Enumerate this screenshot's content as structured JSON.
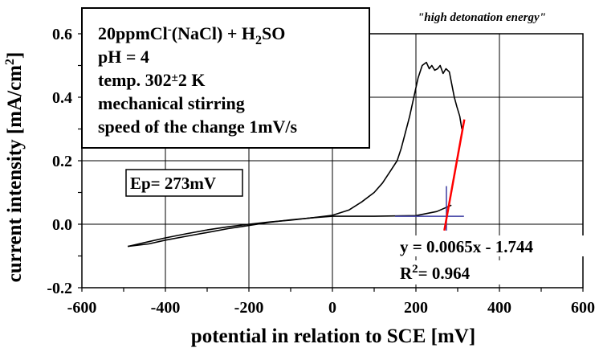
{
  "chart_data": {
    "type": "line",
    "xlabel": "potential in relation to SCE [mV]",
    "ylabel": "current intensity [mA/cm²]",
    "xlim": [
      -600,
      600
    ],
    "ylim": [
      -0.2,
      0.6
    ],
    "x_ticks": [
      "-600",
      "-400",
      "-200",
      "0",
      "200",
      "400",
      "600"
    ],
    "y_ticks": [
      "-0.2",
      "0.0",
      "0.2",
      "0.4",
      "0.6"
    ],
    "grid": true,
    "title": "",
    "top_label": "\"high detonation energy\"",
    "conditions": {
      "line1": "20ppmCl",
      "line1_sup": "-",
      "line1_after": "(NaCl) + H",
      "line1_sub": "2",
      "line1_end": "SO",
      "line2": "pH = 4",
      "line3_pre": "temp. 302",
      "line3_pm": "±",
      "line3_post": "2 K",
      "line4": "mechanical stirring",
      "line5": "speed of the change 1mV/s"
    },
    "ep_label": "Ep= 273mV",
    "fit_equation": "y = 0.0065x - 1.744",
    "r2_pre": "R",
    "r2_sup": "2",
    "r2_post": "= 0.964",
    "colors": {
      "curve": "#000000",
      "fit_line": "#ff0000",
      "marker": "#3a3aa0",
      "grid": "#000000"
    },
    "series": [
      {
        "values": [
          [
            -490,
            -0.07
          ],
          [
            -440,
            -0.055
          ],
          [
            -400,
            -0.043
          ],
          [
            -350,
            -0.03
          ],
          [
            -300,
            -0.018
          ],
          [
            -250,
            -0.008
          ],
          [
            -200,
            0.0
          ],
          [
            -150,
            0.007
          ],
          [
            -100,
            0.013
          ],
          [
            -50,
            0.02
          ],
          [
            0,
            0.028
          ],
          [
            40,
            0.045
          ],
          [
            70,
            0.07
          ],
          [
            100,
            0.1
          ],
          [
            120,
            0.13
          ],
          [
            140,
            0.17
          ],
          [
            155,
            0.2
          ],
          [
            165,
            0.24
          ],
          [
            175,
            0.29
          ],
          [
            185,
            0.34
          ],
          [
            195,
            0.4
          ],
          [
            205,
            0.46
          ],
          [
            215,
            0.5
          ],
          [
            225,
            0.51
          ],
          [
            232,
            0.49
          ],
          [
            238,
            0.5
          ],
          [
            245,
            0.485
          ],
          [
            252,
            0.49
          ],
          [
            258,
            0.5
          ],
          [
            265,
            0.475
          ],
          [
            272,
            0.49
          ],
          [
            280,
            0.48
          ],
          [
            286,
            0.44
          ],
          [
            292,
            0.4
          ],
          [
            298,
            0.37
          ],
          [
            305,
            0.34
          ],
          [
            310,
            0.3
          ]
        ]
      },
      {
        "values": [
          [
            -490,
            -0.07
          ],
          [
            -440,
            -0.062
          ],
          [
            -400,
            -0.05
          ],
          [
            -350,
            -0.038
          ],
          [
            -300,
            -0.026
          ],
          [
            -250,
            -0.014
          ],
          [
            -200,
            -0.004
          ],
          [
            -150,
            0.006
          ],
          [
            -100,
            0.014
          ],
          [
            -50,
            0.02
          ],
          [
            0,
            0.025
          ],
          [
            100,
            0.025
          ],
          [
            200,
            0.027
          ],
          [
            250,
            0.04
          ],
          [
            285,
            0.06
          ]
        ]
      }
    ],
    "fit_line": {
      "x": [
        268,
        316
      ],
      "y": [
        -0.02,
        0.33
      ]
    },
    "ep_markers": {
      "vertical": {
        "x": 273,
        "y": [
          -0.02,
          0.12
        ]
      },
      "horizontal": {
        "x": [
          150,
          315
        ],
        "y": 0.025
      }
    }
  }
}
